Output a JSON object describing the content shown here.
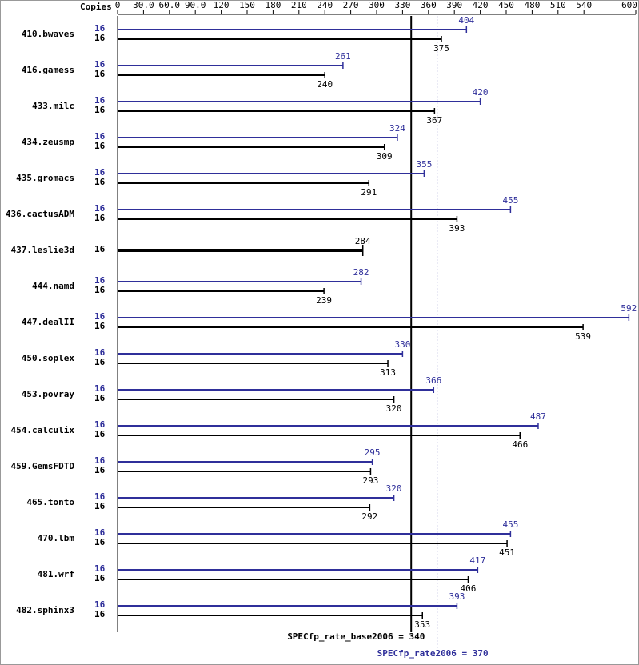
{
  "chart_data": {
    "type": "bar",
    "orientation": "horizontal",
    "axis_label": "Copies",
    "categories": [
      "410.bwaves",
      "416.gamess",
      "433.milc",
      "434.zeusmp",
      "435.gromacs",
      "436.cactusADM",
      "437.leslie3d",
      "444.namd",
      "447.dealII",
      "450.soplex",
      "453.povray",
      "454.calculix",
      "459.GemsFDTD",
      "465.tonto",
      "470.lbm",
      "481.wrf",
      "482.sphinx3"
    ],
    "series": [
      {
        "name": "SPECfp_rate2006",
        "color": "#2f2f9a",
        "copies": [
          16,
          16,
          16,
          16,
          16,
          16,
          null,
          16,
          16,
          16,
          16,
          16,
          16,
          16,
          16,
          16,
          16
        ],
        "values": [
          404,
          261,
          420,
          324,
          355,
          455,
          null,
          282,
          592,
          330,
          366,
          487,
          295,
          320,
          455,
          417,
          393
        ]
      },
      {
        "name": "SPECfp_rate_base2006",
        "color": "#000000",
        "copies": [
          16,
          16,
          16,
          16,
          16,
          16,
          16,
          16,
          16,
          16,
          16,
          16,
          16,
          16,
          16,
          16,
          16
        ],
        "values": [
          375,
          240,
          367,
          309,
          291,
          393,
          284,
          239,
          539,
          313,
          320,
          466,
          293,
          292,
          451,
          406,
          353
        ]
      }
    ],
    "reference_lines": [
      {
        "label": "SPECfp_rate_base2006 = 340",
        "value": 340,
        "color": "#000000",
        "style": "solid"
      },
      {
        "label": "SPECfp_rate2006 = 370",
        "value": 370,
        "color": "#2f2f9a",
        "style": "dotted"
      }
    ],
    "xlim": [
      0,
      600
    ],
    "xticks": [
      0,
      {
        "value": 30,
        "label": "30.0"
      },
      {
        "value": 60,
        "label": "60.0"
      },
      {
        "value": 90,
        "label": "90.0"
      },
      120,
      150,
      180,
      210,
      240,
      270,
      300,
      330,
      360,
      390,
      420,
      450,
      480,
      510,
      540,
      600
    ]
  }
}
